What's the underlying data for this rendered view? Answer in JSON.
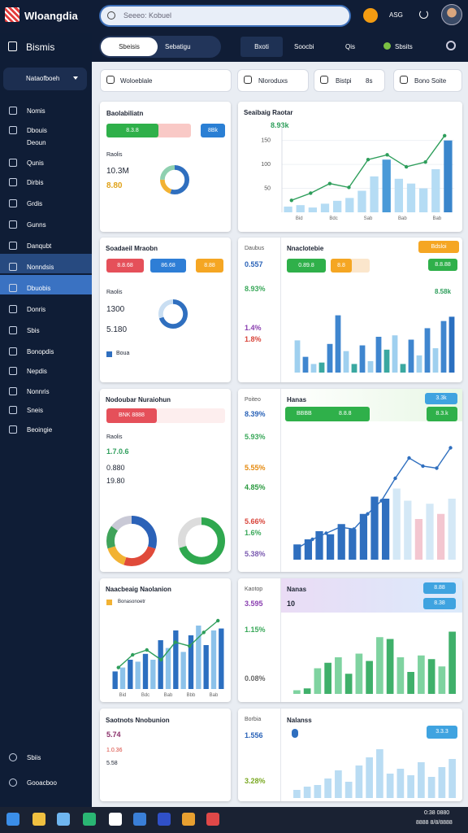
{
  "app": {
    "name": "Wloangdia",
    "search": "Seeeo: Kobuel",
    "user": "ASG"
  },
  "tabs": [
    "Sbeisis",
    "Sebatigu",
    "Bxoti",
    "Soocbi",
    "Qis",
    "Sbsits"
  ],
  "filters": [
    "Woloeblale",
    "Nloroduxs",
    "Bistpi",
    "8s",
    "Bono Soite"
  ],
  "sidebar": {
    "title": "Bismis",
    "select": "Nataofboeh",
    "items": [
      "Nomis",
      "Dbouis",
      "Deoun",
      "Qunis",
      "Dirbis",
      "Grdis",
      "Gunns",
      "Danqubt",
      "Nonndsis",
      "Dbuobis",
      "Donris",
      "Sbis",
      "Bonopdis",
      "Nepdis",
      "Nonnris",
      "Sneis",
      "Beoingie"
    ],
    "footer": [
      "Sbiis",
      "Gooacboo"
    ]
  },
  "cards": [
    {
      "title": "Baolabiliatn",
      "pills": [
        "8.3.8",
        "8Bk"
      ],
      "label": "Raolis",
      "stats": [
        "10.3M",
        "8.80"
      ],
      "chart": {
        "type": "donut",
        "values": [
          55,
          20,
          25
        ],
        "colors": [
          "#2f6fbf",
          "#f2b233",
          "#8fd0b0"
        ]
      }
    },
    {
      "title": "Seaibaig Raotar",
      "stat": "8.93k",
      "chart": {
        "type": "bar",
        "values": [
          12,
          15,
          10,
          18,
          24,
          30,
          45,
          75,
          110,
          70,
          60,
          50,
          90,
          150
        ],
        "colors": [
          "#b5dcf4",
          "#b5dcf4",
          "#b5dcf4",
          "#b5dcf4",
          "#b5dcf4",
          "#b5dcf4",
          "#b5dcf4",
          "#b5dcf4",
          "#4a9ad8",
          "#b5dcf4",
          "#b5dcf4",
          "#b5dcf4",
          "#b5dcf4",
          "#3a86cc"
        ],
        "line": [
          25,
          40,
          60,
          52,
          110,
          120,
          95,
          105,
          160
        ],
        "line_color": "#2e9e5b",
        "ylim": [
          0,
          180
        ],
        "yticks": [
          150,
          100,
          50
        ],
        "x_labels": [
          "Bid",
          "Bdc",
          "Sab",
          "Bab",
          "Bab"
        ]
      }
    },
    {
      "title": "Soadaeil Mraobn",
      "pills": [
        "8.8.68",
        "86.68",
        "8.88"
      ],
      "label": "Raolis",
      "stats": [
        "1300",
        "5.180"
      ],
      "legend": "Boua",
      "chart": {
        "type": "donut",
        "values": [
          70,
          30
        ],
        "colors": [
          "#2f6fbf",
          "#c9def2"
        ]
      }
    },
    {
      "side": {
        "title": "Daubus",
        "stats": [
          "0.557",
          "8.93%",
          "1.4%",
          "1.8%"
        ]
      },
      "title": "Nnaclotebie",
      "badge": "Bdsloi",
      "pills": [
        "0.89.8",
        "8.8",
        "8.8.88"
      ],
      "stat": "8.58k",
      "chart": {
        "type": "bar",
        "values": [
          45,
          22,
          12,
          14,
          40,
          80,
          30,
          12,
          38,
          16,
          50,
          32,
          52,
          12,
          46,
          24,
          62,
          34,
          72,
          78
        ],
        "colors": [
          "#9fd0ef",
          "#3f86cf",
          "#9fd0ef",
          "#3aa8a0",
          "#3f86cf",
          "#3f86cf",
          "#9fd0ef",
          "#3aa8a0",
          "#3f86cf",
          "#9fd0ef",
          "#3f86cf",
          "#3aa8a0",
          "#9fd0ef",
          "#3aa8a0",
          "#3f86cf",
          "#9fd0ef",
          "#3f86cf",
          "#9fd0ef",
          "#3f86cf",
          "#2a6fc0"
        ],
        "ylim": [
          0,
          100
        ]
      }
    },
    {
      "title": "Nodoubar Nuraiohun",
      "pill": "BNK 8888",
      "label": "Raolis",
      "stats": [
        "1.7.0.6",
        "0.880",
        "19.80"
      ],
      "charts": [
        {
          "type": "donut",
          "values": [
            30,
            25,
            15,
            15,
            15
          ],
          "colors": [
            "#2b62b8",
            "#e04a3a",
            "#f2b233",
            "#3fa35a",
            "#c9c9d6"
          ]
        },
        {
          "type": "donut",
          "values": [
            70,
            30
          ],
          "colors": [
            "#2fa84f",
            "#dcdcdc"
          ]
        }
      ]
    },
    {
      "side": {
        "title": "Poiteo",
        "stats": [
          "8.39%",
          "5.93%",
          "5.55%",
          "4.85%",
          "5.66%",
          "1.6%",
          "5.38%"
        ]
      },
      "title": "Hanas",
      "badge": "3.3k",
      "pills": [
        "BBBB",
        "8.8.8",
        "8.3.k"
      ],
      "chart": {
        "type": "bar",
        "values": [
          15,
          20,
          28,
          25,
          35,
          30,
          45,
          62,
          60,
          70,
          58,
          40,
          55,
          45,
          60
        ],
        "colors": [
          "#2f6fbf",
          "#2f6fbf",
          "#2f6fbf",
          "#2f6fbf",
          "#2f6fbf",
          "#2f6fbf",
          "#2f6fbf",
          "#2f6fbf",
          "#2f6fbf",
          "#d4e8f6",
          "#d4e8f6",
          "#f3c6d0",
          "#d4e8f6",
          "#f3c6d0",
          "#d4e8f6"
        ],
        "line": [
          12,
          20,
          26,
          32,
          30,
          45,
          58,
          80,
          100,
          92,
          90,
          110
        ],
        "line_color": "#2f6fbf",
        "ylim": [
          0,
          120
        ]
      }
    },
    {
      "title": "Naacbeaig Naolanion",
      "legend": "Bonasonoetr",
      "chart": {
        "type": "bar",
        "values": [
          18,
          22,
          30,
          28,
          36,
          30,
          50,
          42,
          60,
          38,
          55,
          65,
          45,
          60,
          62
        ],
        "colors": [
          "#2c6fc0",
          "#8cc2ea",
          "#2c6fc0",
          "#8cc2ea",
          "#2c6fc0",
          "#8cc2ea",
          "#2c6fc0",
          "#8cc2ea",
          "#2c6fc0",
          "#8cc2ea",
          "#2c6fc0",
          "#8cc2ea",
          "#2c6fc0",
          "#8cc2ea",
          "#2c6fc0"
        ],
        "line": [
          22,
          35,
          40,
          30,
          48,
          44,
          58,
          70
        ],
        "line_color": "#2e9e5b",
        "ylim": [
          0,
          80
        ],
        "x_labels": [
          "Bid",
          "Bdc",
          "Bab",
          "Bbb",
          "Bab"
        ]
      }
    },
    {
      "side": {
        "title": "Kaotop",
        "stats": [
          "3.595",
          "1.15%",
          "0.08%"
        ]
      },
      "title": "Nanas",
      "stat": "10",
      "badge": "8.88",
      "pill": "8.38",
      "chart": {
        "type": "bar",
        "values": [
          4,
          6,
          28,
          34,
          40,
          22,
          44,
          36,
          62,
          60,
          40,
          24,
          42,
          38,
          30,
          68
        ],
        "colors": [
          "#7fd3a0",
          "#3fb06a",
          "#7fd3a0",
          "#3fb06a",
          "#7fd3a0",
          "#3fb06a",
          "#7fd3a0",
          "#3fb06a",
          "#7fd3a0",
          "#3fb06a",
          "#7fd3a0",
          "#3fb06a",
          "#7fd3a0",
          "#3fb06a",
          "#7fd3a0",
          "#3fb06a"
        ],
        "ylim": [
          0,
          80
        ]
      }
    },
    {
      "title": "Saotnots Nnobunion",
      "stats": [
        "5.74",
        "1.0.36",
        "5.58"
      ]
    },
    {
      "side": {
        "title": "Borbia",
        "stats": [
          "1.556",
          "3.28%"
        ]
      },
      "title": "Nalanss",
      "badge": "3.3.3",
      "chart": {
        "type": "bar",
        "values": [
          10,
          14,
          16,
          24,
          34,
          20,
          40,
          50,
          60,
          30,
          36,
          28,
          44,
          26,
          38,
          48
        ],
        "color": "#b9dcf3",
        "ylim": [
          0,
          70
        ]
      }
    }
  ],
  "taskbar": {
    "clock": [
      "0:38 0880",
      "8888 8/8/8888"
    ]
  }
}
